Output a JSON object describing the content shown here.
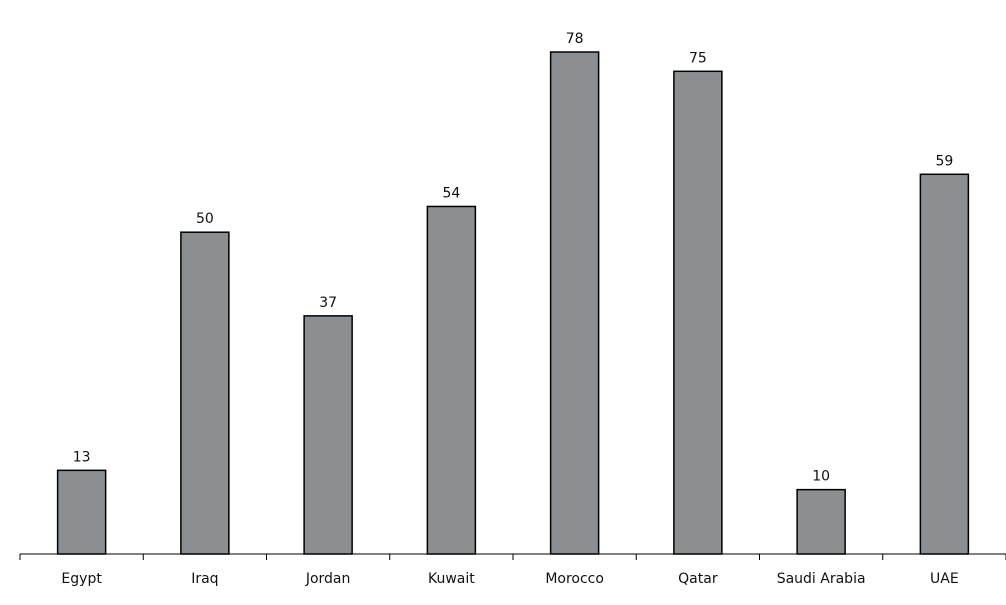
{
  "chart_data": {
    "type": "bar",
    "categories": [
      "Egypt",
      "Iraq",
      "Jordan",
      "Kuwait",
      "Morocco",
      "Qatar",
      "Saudi Arabia",
      "UAE"
    ],
    "values": [
      13,
      50,
      37,
      54,
      78,
      75,
      10,
      59
    ],
    "title": "",
    "xlabel": "",
    "ylabel": "",
    "ylim": [
      0,
      87
    ],
    "grid": false,
    "legend": "none",
    "bar_color": "#8b8f92"
  }
}
